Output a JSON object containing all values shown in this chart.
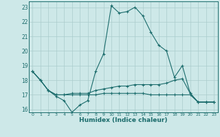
{
  "title": "",
  "xlabel": "Humidex (Indice chaleur)",
  "ylabel": "",
  "bg_color": "#cde8e8",
  "line_color": "#1a6b6b",
  "grid_color": "#aacccc",
  "xlim": [
    -0.5,
    23.5
  ],
  "ylim": [
    15.8,
    23.4
  ],
  "xticks": [
    0,
    1,
    2,
    3,
    4,
    5,
    6,
    7,
    8,
    9,
    10,
    11,
    12,
    13,
    14,
    15,
    16,
    17,
    18,
    19,
    20,
    21,
    22,
    23
  ],
  "yticks": [
    16,
    17,
    18,
    19,
    20,
    21,
    22,
    23
  ],
  "curve1_x": [
    0,
    1,
    2,
    3,
    4,
    5,
    6,
    7,
    8,
    9,
    10,
    11,
    12,
    13,
    14,
    15,
    16,
    17,
    18,
    19,
    20,
    21,
    22,
    23
  ],
  "curve1_y": [
    18.6,
    18.0,
    17.3,
    16.9,
    16.6,
    15.8,
    16.3,
    16.6,
    18.6,
    19.8,
    23.1,
    22.6,
    22.7,
    23.0,
    22.4,
    21.3,
    20.4,
    20.0,
    18.2,
    19.0,
    17.1,
    16.5,
    16.5,
    16.5
  ],
  "curve2_x": [
    0,
    1,
    2,
    3,
    4,
    5,
    6,
    7,
    8,
    9,
    10,
    11,
    12,
    13,
    14,
    15,
    16,
    17,
    18,
    19,
    20,
    21,
    22,
    23
  ],
  "curve2_y": [
    18.6,
    18.0,
    17.3,
    17.0,
    17.0,
    17.1,
    17.1,
    17.1,
    17.3,
    17.4,
    17.5,
    17.6,
    17.6,
    17.7,
    17.7,
    17.7,
    17.7,
    17.8,
    18.0,
    18.1,
    17.1,
    16.5,
    16.5,
    16.5
  ],
  "curve3_x": [
    0,
    1,
    2,
    3,
    4,
    5,
    6,
    7,
    8,
    9,
    10,
    11,
    12,
    13,
    14,
    15,
    16,
    17,
    18,
    19,
    20,
    21,
    22,
    23
  ],
  "curve3_y": [
    18.6,
    18.0,
    17.3,
    17.0,
    17.0,
    17.0,
    17.0,
    17.0,
    17.0,
    17.1,
    17.1,
    17.1,
    17.1,
    17.1,
    17.1,
    17.0,
    17.0,
    17.0,
    17.0,
    17.0,
    17.0,
    16.5,
    16.5,
    16.5
  ]
}
